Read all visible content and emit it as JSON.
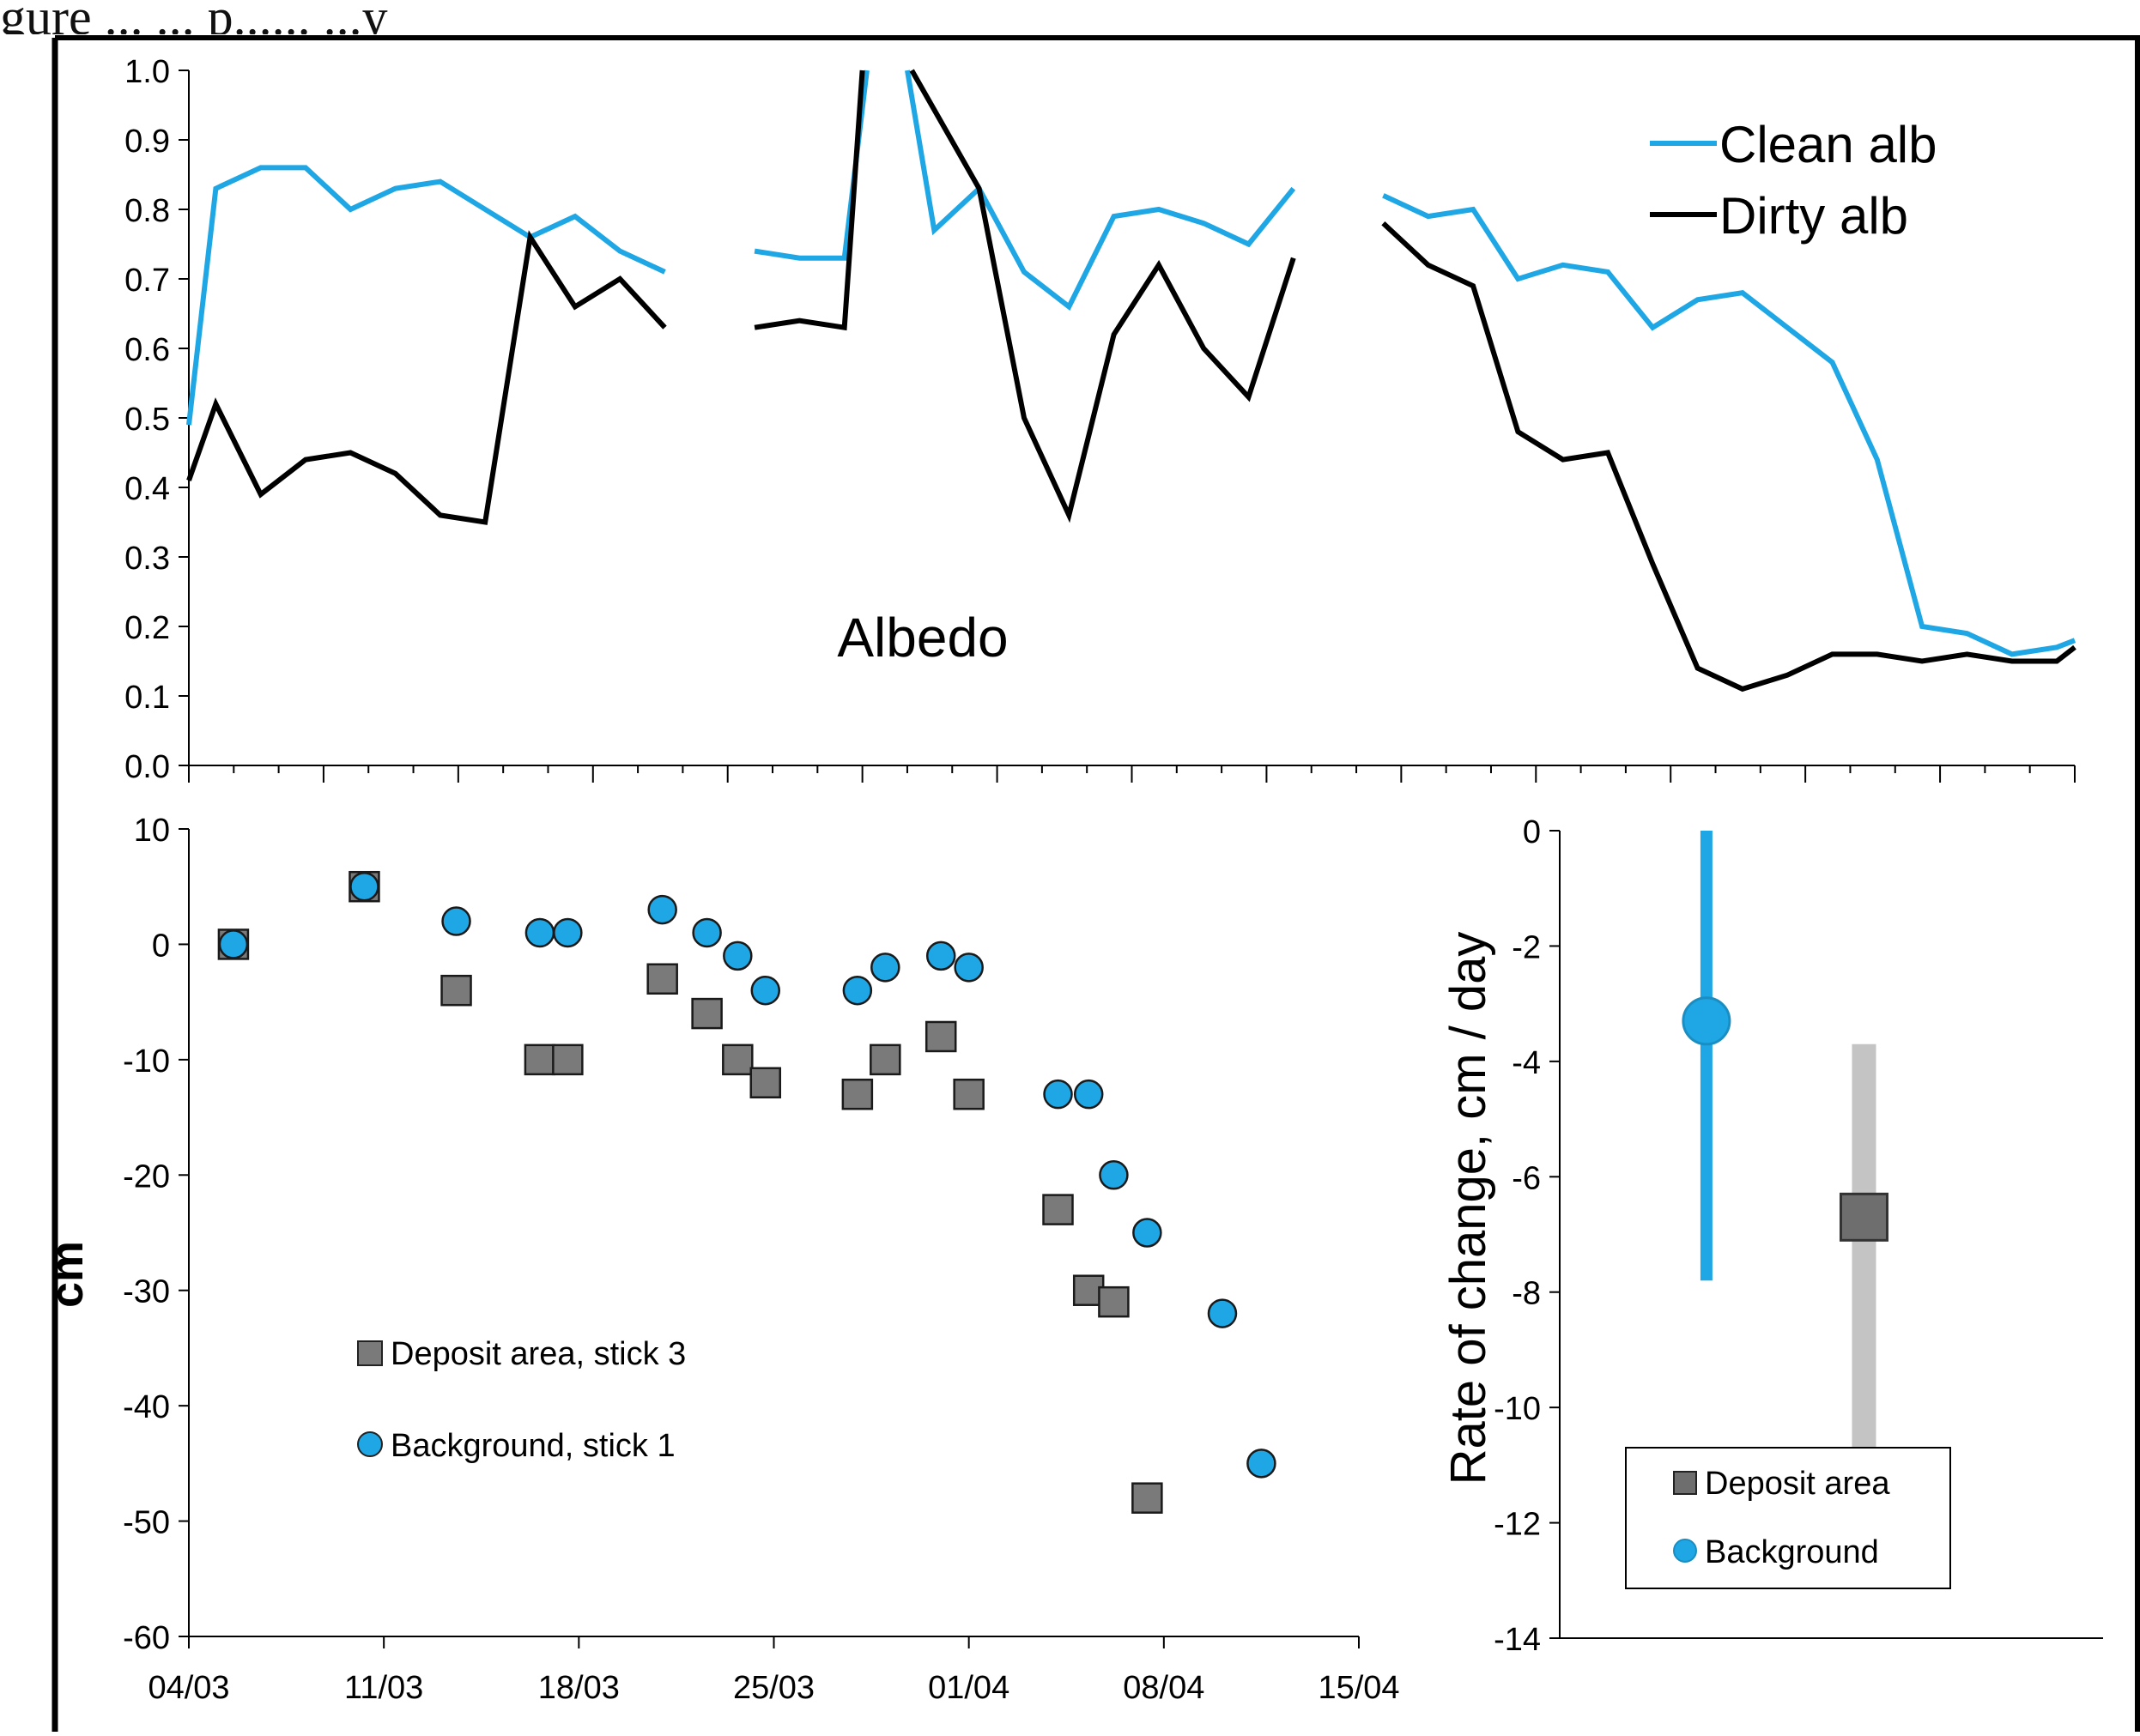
{
  "header_fragment": "gure ...  ... p...... ...y",
  "chart_data": [
    {
      "id": "albedo",
      "type": "line",
      "annotation": "Albedo",
      "title": "",
      "xlabel": "",
      "ylabel": "",
      "ylim": [
        0.0,
        1.0
      ],
      "yticks": [
        "1.0",
        "0.9",
        "0.8",
        "0.7",
        "0.6",
        "0.5",
        "0.4",
        "0.3",
        "0.2",
        "0.1",
        "0.0"
      ],
      "xlim_day": [
        4,
        46
      ],
      "legend": {
        "placement": "top-right",
        "entries": [
          "Clean alb",
          "Dirty alb"
        ]
      },
      "series": [
        {
          "name": "Clean alb",
          "color": "#1ea7e4",
          "segments": [
            [
              [
                4.0,
                0.49
              ],
              [
                4.6,
                0.83
              ],
              [
                5.6,
                0.86
              ],
              [
                6.6,
                0.86
              ],
              [
                7.6,
                0.8
              ],
              [
                8.6,
                0.83
              ],
              [
                9.6,
                0.84
              ],
              [
                10.6,
                0.8
              ],
              [
                11.6,
                0.76
              ],
              [
                12.6,
                0.79
              ],
              [
                13.6,
                0.74
              ],
              [
                14.6,
                0.71
              ]
            ],
            [
              [
                16.6,
                0.74
              ],
              [
                17.6,
                0.73
              ],
              [
                18.6,
                0.73
              ],
              [
                19.1,
                1.0
              ]
            ],
            [
              [
                20.0,
                1.0
              ],
              [
                20.6,
                0.77
              ],
              [
                21.6,
                0.83
              ],
              [
                22.6,
                0.71
              ],
              [
                23.6,
                0.66
              ],
              [
                24.6,
                0.79
              ],
              [
                25.6,
                0.8
              ],
              [
                26.6,
                0.78
              ],
              [
                27.6,
                0.75
              ],
              [
                28.6,
                0.83
              ]
            ],
            [
              [
                30.6,
                0.82
              ],
              [
                31.6,
                0.79
              ],
              [
                32.6,
                0.8
              ],
              [
                33.6,
                0.7
              ],
              [
                34.6,
                0.72
              ],
              [
                35.6,
                0.71
              ],
              [
                36.6,
                0.63
              ],
              [
                37.6,
                0.67
              ],
              [
                38.6,
                0.68
              ],
              [
                39.6,
                0.63
              ],
              [
                40.6,
                0.58
              ],
              [
                41.6,
                0.44
              ],
              [
                42.6,
                0.2
              ],
              [
                43.6,
                0.19
              ],
              [
                44.6,
                0.16
              ],
              [
                45.6,
                0.17
              ],
              [
                46.0,
                0.18
              ]
            ]
          ]
        },
        {
          "name": "Dirty alb",
          "color": "#000000",
          "segments": [
            [
              [
                4.0,
                0.41
              ],
              [
                4.6,
                0.52
              ],
              [
                5.6,
                0.39
              ],
              [
                6.6,
                0.44
              ],
              [
                7.6,
                0.45
              ],
              [
                8.6,
                0.42
              ],
              [
                9.6,
                0.36
              ],
              [
                10.6,
                0.35
              ],
              [
                11.6,
                0.76
              ],
              [
                12.6,
                0.66
              ],
              [
                13.6,
                0.7
              ],
              [
                14.6,
                0.63
              ]
            ],
            [
              [
                16.6,
                0.63
              ],
              [
                17.6,
                0.64
              ],
              [
                18.6,
                0.63
              ],
              [
                19.0,
                1.0
              ]
            ],
            [
              [
                20.1,
                1.0
              ],
              [
                21.6,
                0.83
              ],
              [
                22.6,
                0.5
              ],
              [
                23.6,
                0.36
              ],
              [
                24.6,
                0.62
              ],
              [
                25.6,
                0.72
              ],
              [
                26.6,
                0.6
              ],
              [
                27.6,
                0.53
              ],
              [
                28.6,
                0.73
              ]
            ],
            [
              [
                30.6,
                0.78
              ],
              [
                31.6,
                0.72
              ],
              [
                32.6,
                0.69
              ],
              [
                33.6,
                0.48
              ],
              [
                34.6,
                0.44
              ],
              [
                35.6,
                0.45
              ],
              [
                36.6,
                0.29
              ],
              [
                37.6,
                0.14
              ],
              [
                38.6,
                0.11
              ],
              [
                39.6,
                0.13
              ],
              [
                40.6,
                0.16
              ],
              [
                41.6,
                0.16
              ],
              [
                42.6,
                0.15
              ],
              [
                43.6,
                0.16
              ],
              [
                44.6,
                0.15
              ],
              [
                45.6,
                0.15
              ],
              [
                46.0,
                0.17
              ]
            ]
          ]
        }
      ]
    },
    {
      "id": "stake",
      "type": "scatter",
      "title": "",
      "xlabel": "",
      "ylabel": "cm",
      "ylim": [
        -60,
        10
      ],
      "yticks": [
        "10",
        "0",
        "-10",
        "-20",
        "-30",
        "-40",
        "-50",
        "-60"
      ],
      "xlim_day": [
        4,
        46
      ],
      "xticks": [
        "04/03",
        "11/03",
        "18/03",
        "25/03",
        "01/04",
        "08/04",
        "15/04"
      ],
      "legend": {
        "placement": "lower-left",
        "entries": [
          "Deposit area, stick 3",
          "Background, stick 1"
        ]
      },
      "series": [
        {
          "name": "Deposit area, stick 3",
          "marker": "square",
          "color": "#7a7a7a",
          "points": [
            [
              5.6,
              0
            ],
            [
              10.3,
              5
            ],
            [
              13.6,
              -4
            ],
            [
              16.6,
              -10
            ],
            [
              17.6,
              -10
            ],
            [
              21.0,
              -3
            ],
            [
              22.6,
              -6
            ],
            [
              23.7,
              -10
            ],
            [
              24.7,
              -12
            ],
            [
              28.0,
              -13
            ],
            [
              29.0,
              -10
            ],
            [
              31.0,
              -8
            ],
            [
              32.0,
              -13
            ],
            [
              35.2,
              -23
            ],
            [
              36.3,
              -30
            ],
            [
              37.2,
              -31
            ],
            [
              38.4,
              -48
            ]
          ]
        },
        {
          "name": "Background, stick 1",
          "marker": "circle",
          "color": "#1ea7e4",
          "points": [
            [
              5.6,
              0
            ],
            [
              10.3,
              5
            ],
            [
              13.6,
              2
            ],
            [
              16.6,
              1
            ],
            [
              17.6,
              1
            ],
            [
              21.0,
              3
            ],
            [
              22.6,
              1
            ],
            [
              23.7,
              -1
            ],
            [
              24.7,
              -4
            ],
            [
              28.0,
              -4
            ],
            [
              29.0,
              -2
            ],
            [
              31.0,
              -1
            ],
            [
              32.0,
              -2
            ],
            [
              35.2,
              -13
            ],
            [
              36.3,
              -13
            ],
            [
              37.2,
              -20
            ],
            [
              38.4,
              -25
            ],
            [
              41.1,
              -32
            ],
            [
              42.5,
              -45
            ]
          ]
        }
      ]
    },
    {
      "id": "rate",
      "type": "errorbar",
      "title": "",
      "xlabel": "",
      "ylabel": "Rate of change, cm / day",
      "ylim": [
        -14,
        0
      ],
      "yticks": [
        "0",
        "-2",
        "-4",
        "-6",
        "-8",
        "-10",
        "-12",
        "-14"
      ],
      "legend": {
        "placement": "lower-left",
        "entries": [
          "Deposit area",
          "Background"
        ]
      },
      "series": [
        {
          "name": "Background",
          "marker": "circle",
          "color": "#1ea7e4",
          "value": -3.3,
          "low": -7.8,
          "high": 0.0
        },
        {
          "name": "Deposit area",
          "marker": "square",
          "color": "#6e6e6e",
          "bar_color": "#c4c4c4",
          "value": -6.7,
          "low": -12.0,
          "high": -3.7
        }
      ]
    }
  ]
}
